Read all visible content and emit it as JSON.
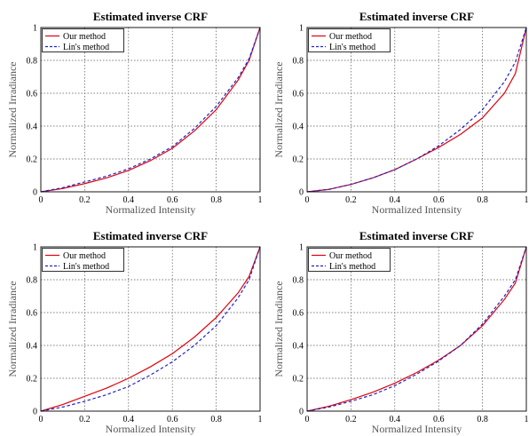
{
  "chart_data": [
    {
      "type": "line",
      "title": "Estimated inverse CRF",
      "xlabel": "Normalized Intensity",
      "ylabel": "Normalized Irradiance",
      "xlim": [
        0,
        1
      ],
      "ylim": [
        0,
        1
      ],
      "xticks": [
        "0",
        "0.2",
        "0.4",
        "0.6",
        "0.8",
        "1"
      ],
      "yticks": [
        "0",
        "0.2",
        "0.4",
        "0.6",
        "0.8",
        "1"
      ],
      "grid": true,
      "legend_position": "top-left",
      "series": [
        {
          "name": "Our method",
          "color": "#e0000f",
          "dash": "solid",
          "x": [
            0,
            0.1,
            0.2,
            0.3,
            0.4,
            0.5,
            0.6,
            0.7,
            0.8,
            0.9,
            0.95,
            1
          ],
          "y": [
            0,
            0.02,
            0.05,
            0.085,
            0.13,
            0.19,
            0.265,
            0.37,
            0.5,
            0.68,
            0.8,
            1
          ]
        },
        {
          "name": "Lin's method",
          "color": "#1f24c8",
          "dash": "dashed",
          "x": [
            0,
            0.1,
            0.2,
            0.3,
            0.4,
            0.5,
            0.6,
            0.7,
            0.8,
            0.9,
            0.95,
            1
          ],
          "y": [
            0,
            0.025,
            0.06,
            0.095,
            0.14,
            0.2,
            0.275,
            0.385,
            0.52,
            0.695,
            0.81,
            1
          ]
        }
      ]
    },
    {
      "type": "line",
      "title": "Estimated inverse CRF",
      "xlabel": "Normalized Intensity",
      "ylabel": "Normalized Irradiance",
      "xlim": [
        0,
        1
      ],
      "ylim": [
        0,
        1
      ],
      "xticks": [
        "0",
        "0.2",
        "0.4",
        "0.6",
        "0.8",
        "1"
      ],
      "yticks": [
        "0",
        "0.2",
        "0.4",
        "0.6",
        "0.8",
        "1"
      ],
      "grid": true,
      "legend_position": "top-left",
      "series": [
        {
          "name": "Our method",
          "color": "#e0000f",
          "dash": "solid",
          "x": [
            0,
            0.1,
            0.2,
            0.3,
            0.4,
            0.5,
            0.6,
            0.7,
            0.8,
            0.9,
            0.95,
            1
          ],
          "y": [
            0,
            0.015,
            0.045,
            0.085,
            0.135,
            0.2,
            0.27,
            0.35,
            0.45,
            0.6,
            0.72,
            1
          ]
        },
        {
          "name": "Lin's method",
          "color": "#1f24c8",
          "dash": "dashed",
          "x": [
            0,
            0.1,
            0.2,
            0.3,
            0.4,
            0.5,
            0.6,
            0.7,
            0.8,
            0.9,
            0.95,
            1
          ],
          "y": [
            0,
            0.015,
            0.045,
            0.085,
            0.135,
            0.2,
            0.28,
            0.38,
            0.5,
            0.67,
            0.79,
            1
          ]
        }
      ]
    },
    {
      "type": "line",
      "title": "Estimated inverse CRF",
      "xlabel": "Normalized Intensity",
      "ylabel": "Normalized Irradiance",
      "xlim": [
        0,
        1
      ],
      "ylim": [
        0,
        1
      ],
      "xticks": [
        "0",
        "0.2",
        "0.4",
        "0.6",
        "0.8",
        "1"
      ],
      "yticks": [
        "0",
        "0.2",
        "0.4",
        "0.6",
        "0.8",
        "1"
      ],
      "grid": true,
      "legend_position": "top-left",
      "series": [
        {
          "name": "Our method",
          "color": "#e0000f",
          "dash": "solid",
          "x": [
            0,
            0.1,
            0.2,
            0.3,
            0.4,
            0.5,
            0.6,
            0.7,
            0.8,
            0.9,
            0.95,
            1
          ],
          "y": [
            0,
            0.04,
            0.09,
            0.14,
            0.2,
            0.27,
            0.35,
            0.45,
            0.57,
            0.72,
            0.82,
            1
          ]
        },
        {
          "name": "Lin's method",
          "color": "#1f24c8",
          "dash": "dashed",
          "x": [
            0,
            0.1,
            0.2,
            0.3,
            0.4,
            0.5,
            0.6,
            0.7,
            0.8,
            0.9,
            0.95,
            1
          ],
          "y": [
            0,
            0.025,
            0.06,
            0.1,
            0.15,
            0.22,
            0.3,
            0.4,
            0.52,
            0.69,
            0.8,
            1
          ]
        }
      ]
    },
    {
      "type": "line",
      "title": "Estimated inverse CRF",
      "xlabel": "Normalized Intensity",
      "ylabel": "Normalized Irradiance",
      "xlim": [
        0,
        1
      ],
      "ylim": [
        0,
        1
      ],
      "xticks": [
        "0",
        "0.2",
        "0.4",
        "0.6",
        "0.8",
        "1"
      ],
      "yticks": [
        "0",
        "0.2",
        "0.4",
        "0.6",
        "0.8",
        "1"
      ],
      "grid": true,
      "legend_position": "top-left",
      "series": [
        {
          "name": "Our method",
          "color": "#e0000f",
          "dash": "solid",
          "x": [
            0,
            0.1,
            0.2,
            0.3,
            0.4,
            0.5,
            0.6,
            0.7,
            0.8,
            0.9,
            0.95,
            1
          ],
          "y": [
            0,
            0.03,
            0.07,
            0.115,
            0.17,
            0.235,
            0.31,
            0.4,
            0.52,
            0.68,
            0.78,
            1
          ]
        },
        {
          "name": "Lin's method",
          "color": "#1f24c8",
          "dash": "dashed",
          "x": [
            0,
            0.1,
            0.2,
            0.3,
            0.4,
            0.5,
            0.6,
            0.7,
            0.8,
            0.9,
            0.95,
            1
          ],
          "y": [
            0,
            0.025,
            0.06,
            0.1,
            0.155,
            0.225,
            0.305,
            0.4,
            0.53,
            0.7,
            0.8,
            1
          ]
        }
      ]
    }
  ]
}
